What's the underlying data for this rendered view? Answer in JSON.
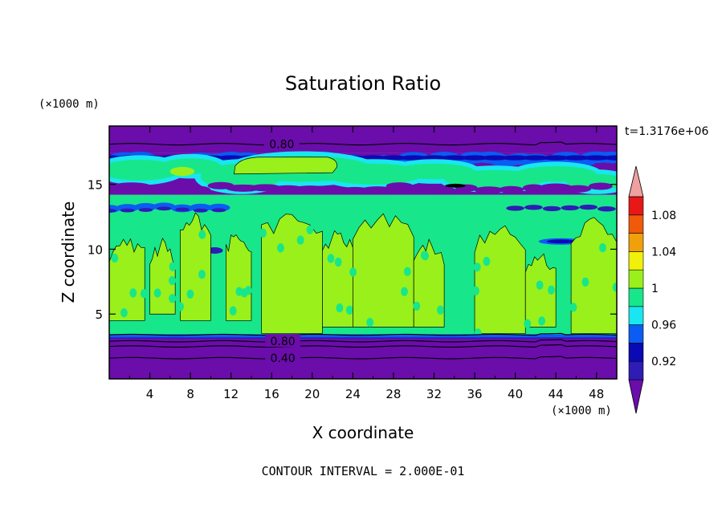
{
  "chart_data": {
    "type": "heatmap",
    "title": "Saturation Ratio",
    "xlabel": "X coordinate",
    "ylabel": "Z coordinate",
    "x_unit": "(×1000 m)",
    "y_unit": "(×1000 m)",
    "time_label": "t=1.3176e+06",
    "footer": "CONTOUR INTERVAL = 2.000E-01",
    "xlim": [
      0,
      50
    ],
    "ylim": [
      0,
      19.5
    ],
    "x_ticks": [
      4,
      8,
      12,
      16,
      20,
      24,
      28,
      32,
      36,
      40,
      44,
      48
    ],
    "y_ticks": [
      5,
      10,
      15
    ],
    "contour_labels": [
      {
        "text": "0.80",
        "x": 17,
        "y": 18.1
      },
      {
        "text": "0.80",
        "x": 17.1,
        "y": 2.9
      },
      {
        "text": "0.40",
        "x": 17.1,
        "y": 1.6
      }
    ],
    "colorbar": {
      "levels": [
        0.9,
        0.92,
        0.94,
        0.96,
        0.98,
        1.0,
        1.02,
        1.04,
        1.06,
        1.08,
        1.1
      ],
      "tick_labels": [
        "0.92",
        "0.96",
        "1",
        "1.04",
        "1.08"
      ],
      "tick_values": [
        0.92,
        0.96,
        1.0,
        1.04,
        1.08
      ],
      "colors": [
        "#6a0daa",
        "#2f1cb4",
        "#0a0ab4",
        "#0b5cf2",
        "#19e6f0",
        "#18e68b",
        "#9af01a",
        "#f0f00a",
        "#f0a00a",
        "#f05a0a",
        "#e81818",
        "#f0a0a0"
      ],
      "extend": "both"
    },
    "layers": [
      {
        "level": "< 0.90",
        "z_range": [
          0,
          3.3
        ],
        "description": "purple band near surface"
      },
      {
        "level": "0.98-1.00",
        "z_range": [
          3.3,
          14
        ],
        "description": "green background with lime-green columns"
      },
      {
        "level": "0.90-0.96",
        "z_range": [
          14,
          17.2
        ],
        "description": "mixed blue/purple layer"
      },
      {
        "level": "< 0.90",
        "z_range": [
          17.5,
          19.5
        ],
        "description": "purple band near top"
      }
    ]
  }
}
